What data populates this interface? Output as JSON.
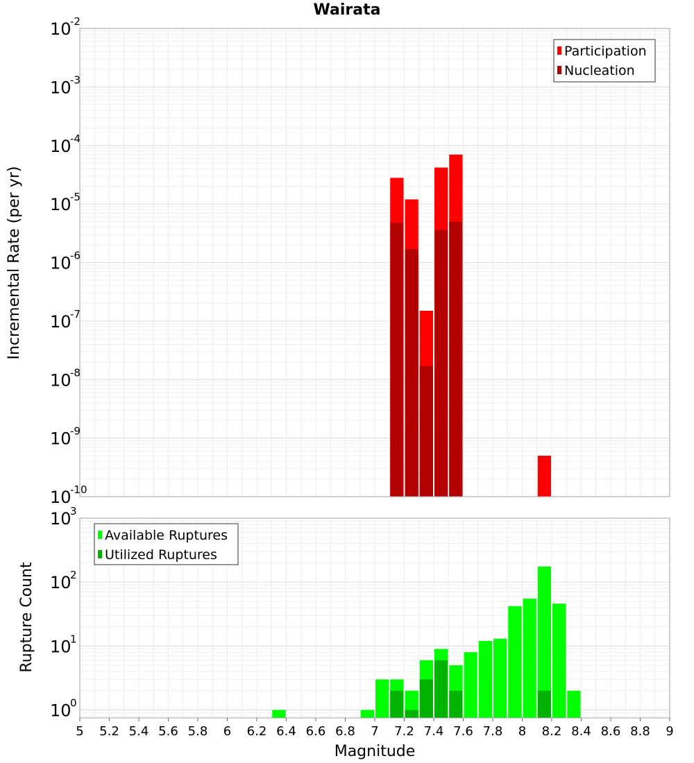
{
  "chart_data": [
    {
      "type": "bar",
      "title": "Wairata",
      "ylabel": "Incremental Rate (per yr)",
      "xlabel": "",
      "yscale": "log",
      "ylim": [
        1e-10,
        0.01
      ],
      "xlim": [
        5,
        9
      ],
      "bar_width": 0.1,
      "legend_position": "top-right",
      "yticks": [
        {
          "base": "10",
          "exp": "-10",
          "value": 1e-10
        },
        {
          "base": "10",
          "exp": "-9",
          "value": 1e-09
        },
        {
          "base": "10",
          "exp": "-8",
          "value": 1e-08
        },
        {
          "base": "10",
          "exp": "-7",
          "value": 1e-07
        },
        {
          "base": "10",
          "exp": "-6",
          "value": 1e-06
        },
        {
          "base": "10",
          "exp": "-5",
          "value": 1e-05
        },
        {
          "base": "10",
          "exp": "-4",
          "value": 0.0001
        },
        {
          "base": "10",
          "exp": "-3",
          "value": 0.001
        },
        {
          "base": "10",
          "exp": "-2",
          "value": 0.01
        }
      ],
      "series": [
        {
          "name": "Participation",
          "color": "#ff0000",
          "x": [
            7.15,
            7.25,
            7.35,
            7.45,
            7.55,
            8.15
          ],
          "values": [
            2.8e-05,
            1.2e-05,
            1.5e-07,
            4.2e-05,
            7e-05,
            5e-10
          ]
        },
        {
          "name": "Nucleation",
          "color": "#b30000",
          "x": [
            7.15,
            7.25,
            7.35,
            7.45,
            7.55
          ],
          "values": [
            4.8e-06,
            1.7e-06,
            1.7e-08,
            3.6e-06,
            5e-06
          ]
        }
      ]
    },
    {
      "type": "bar",
      "title": "",
      "ylabel": "Rupture Count",
      "xlabel": "Magnitude",
      "yscale": "log",
      "ylim": [
        0.75,
        1000
      ],
      "xlim": [
        5,
        9
      ],
      "bar_width": 0.1,
      "legend_position": "top-left",
      "xticks": [
        "5",
        "5.2",
        "5.4",
        "5.6",
        "5.8",
        "6",
        "6.2",
        "6.4",
        "6.6",
        "6.8",
        "7",
        "7.2",
        "7.4",
        "7.6",
        "7.8",
        "8",
        "8.2",
        "8.4",
        "8.6",
        "8.8",
        "9"
      ],
      "yticks": [
        {
          "base": "10",
          "exp": "0",
          "value": 1
        },
        {
          "base": "10",
          "exp": "1",
          "value": 10
        },
        {
          "base": "10",
          "exp": "2",
          "value": 100
        },
        {
          "base": "10",
          "exp": "3",
          "value": 1000
        }
      ],
      "series": [
        {
          "name": "Available Ruptures",
          "color": "#00ff00",
          "x": [
            6.35,
            6.95,
            7.05,
            7.15,
            7.25,
            7.35,
            7.45,
            7.55,
            7.65,
            7.75,
            7.85,
            7.95,
            8.05,
            8.15,
            8.25,
            8.35
          ],
          "values": [
            1,
            1,
            3,
            3,
            2,
            6,
            9,
            5,
            8,
            12,
            13,
            42,
            55,
            175,
            46,
            2
          ]
        },
        {
          "name": "Utilized Ruptures",
          "color": "#00b300",
          "x": [
            7.15,
            7.25,
            7.35,
            7.45,
            7.55,
            8.15
          ],
          "values": [
            2,
            1,
            3,
            6,
            2,
            2
          ]
        }
      ]
    }
  ]
}
